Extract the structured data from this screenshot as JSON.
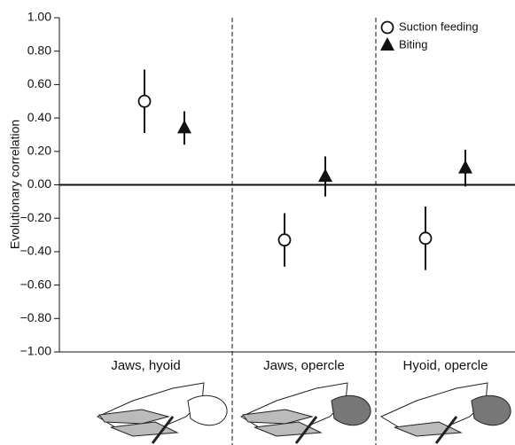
{
  "chart_data": {
    "type": "errorbar",
    "ylabel": "Evolutionary correlation",
    "categories": [
      "Jaws, hyoid",
      "Jaws, opercle",
      "Hyoid, opercle"
    ],
    "series": [
      {
        "name": "Suction feeding",
        "marker": "circle",
        "color": "#ffffff",
        "values": [
          0.5,
          -0.33,
          -0.32
        ],
        "errors": [
          0.19,
          0.16,
          0.19
        ]
      },
      {
        "name": "Biting",
        "marker": "triangle",
        "color": "#111111",
        "values": [
          0.34,
          0.05,
          0.1
        ],
        "errors": [
          0.1,
          0.12,
          0.11
        ]
      }
    ],
    "ylim": [
      -1,
      1
    ],
    "yticks": [
      {
        "value": 1,
        "label": "1.00"
      },
      {
        "value": 0.8,
        "label": "0.80"
      },
      {
        "value": 0.6,
        "label": "0.60"
      },
      {
        "value": 0.4,
        "label": "0.40"
      },
      {
        "value": 0.2,
        "label": "0.20"
      },
      {
        "value": 0,
        "label": "0.00"
      },
      {
        "value": -0.2,
        "label": "−0.20"
      },
      {
        "value": -0.4,
        "label": "−0.40"
      },
      {
        "value": -0.6,
        "label": "−0.60"
      },
      {
        "value": -0.8,
        "label": "−0.80"
      },
      {
        "value": -1,
        "label": "−1.00"
      }
    ],
    "legend": "upper right"
  }
}
